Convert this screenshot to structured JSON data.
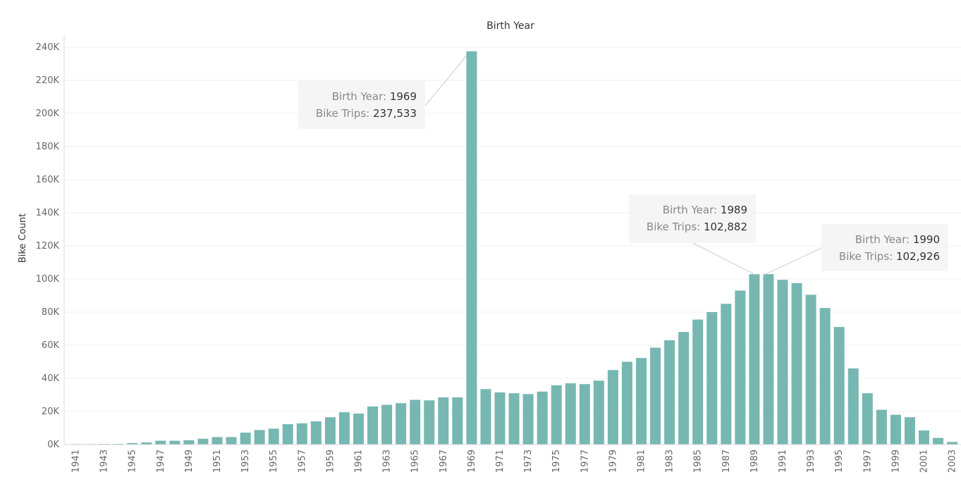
{
  "chart_data": {
    "type": "bar",
    "title": "Birth Year",
    "xlabel": "",
    "ylabel": "Bike Count",
    "ylim": [
      0,
      240000
    ],
    "y_ticks": [
      {
        "value": 0,
        "label": "0K"
      },
      {
        "value": 20000,
        "label": "20K"
      },
      {
        "value": 40000,
        "label": "40K"
      },
      {
        "value": 60000,
        "label": "60K"
      },
      {
        "value": 80000,
        "label": "80K"
      },
      {
        "value": 100000,
        "label": "100K"
      },
      {
        "value": 120000,
        "label": "120K"
      },
      {
        "value": 140000,
        "label": "140K"
      },
      {
        "value": 160000,
        "label": "160K"
      },
      {
        "value": 180000,
        "label": "180K"
      },
      {
        "value": 200000,
        "label": "200K"
      },
      {
        "value": 220000,
        "label": "220K"
      },
      {
        "value": 240000,
        "label": "240K"
      }
    ],
    "categories": [
      "1941",
      "1942",
      "1943",
      "1944",
      "1945",
      "1946",
      "1947",
      "1948",
      "1949",
      "1950",
      "1951",
      "1952",
      "1953",
      "1954",
      "1955",
      "1956",
      "1957",
      "1958",
      "1959",
      "1960",
      "1961",
      "1962",
      "1963",
      "1964",
      "1965",
      "1966",
      "1967",
      "1968",
      "1969",
      "1970",
      "1971",
      "1972",
      "1973",
      "1974",
      "1975",
      "1976",
      "1977",
      "1978",
      "1979",
      "1980",
      "1981",
      "1982",
      "1983",
      "1984",
      "1985",
      "1986",
      "1987",
      "1988",
      "1989",
      "1990",
      "1991",
      "1992",
      "1993",
      "1994",
      "1995",
      "1996",
      "1997",
      "1998",
      "1999",
      "2000",
      "2001",
      "2002",
      "2003"
    ],
    "x_tick_labels": [
      "1941",
      "",
      "1943",
      "",
      "1945",
      "",
      "1947",
      "",
      "1949",
      "",
      "1951",
      "",
      "1953",
      "",
      "1955",
      "",
      "1957",
      "",
      "1959",
      "",
      "1961",
      "",
      "1963",
      "",
      "1965",
      "",
      "1967",
      "",
      "1969",
      "",
      "1971",
      "",
      "1973",
      "",
      "1975",
      "",
      "1977",
      "",
      "1979",
      "",
      "1981",
      "",
      "1983",
      "",
      "1985",
      "",
      "1987",
      "",
      "1989",
      "",
      "1991",
      "",
      "1993",
      "",
      "1995",
      "",
      "1997",
      "",
      "1999",
      "",
      "2001",
      "",
      "2003"
    ],
    "values": [
      300,
      300,
      400,
      400,
      900,
      1300,
      2300,
      2300,
      2600,
      3500,
      4500,
      4500,
      7200,
      8800,
      9600,
      12300,
      12800,
      14000,
      16500,
      19500,
      18700,
      23000,
      24000,
      25000,
      27000,
      26700,
      28500,
      28500,
      237533,
      33500,
      31500,
      31000,
      30500,
      32000,
      35800,
      37000,
      36500,
      38600,
      45000,
      50000,
      52300,
      58500,
      63000,
      68000,
      75500,
      80000,
      85000,
      93000,
      102882,
      102926,
      99500,
      97500,
      90500,
      82500,
      71000,
      46000,
      31000,
      21000,
      18000,
      16500,
      8500,
      4000,
      1600
    ],
    "color": "#76b7b2",
    "annotations": [
      {
        "category": "1969",
        "key1": "Birth Year:",
        "val1": "1969",
        "key2": "Bike Trips:",
        "val2": "237,533"
      },
      {
        "category": "1989",
        "key1": "Birth Year:",
        "val1": "1989",
        "key2": "Bike Trips:",
        "val2": "102,882"
      },
      {
        "category": "1990",
        "key1": "Birth Year:",
        "val1": "1990",
        "key2": "Bike Trips:",
        "val2": "102,926"
      }
    ]
  }
}
